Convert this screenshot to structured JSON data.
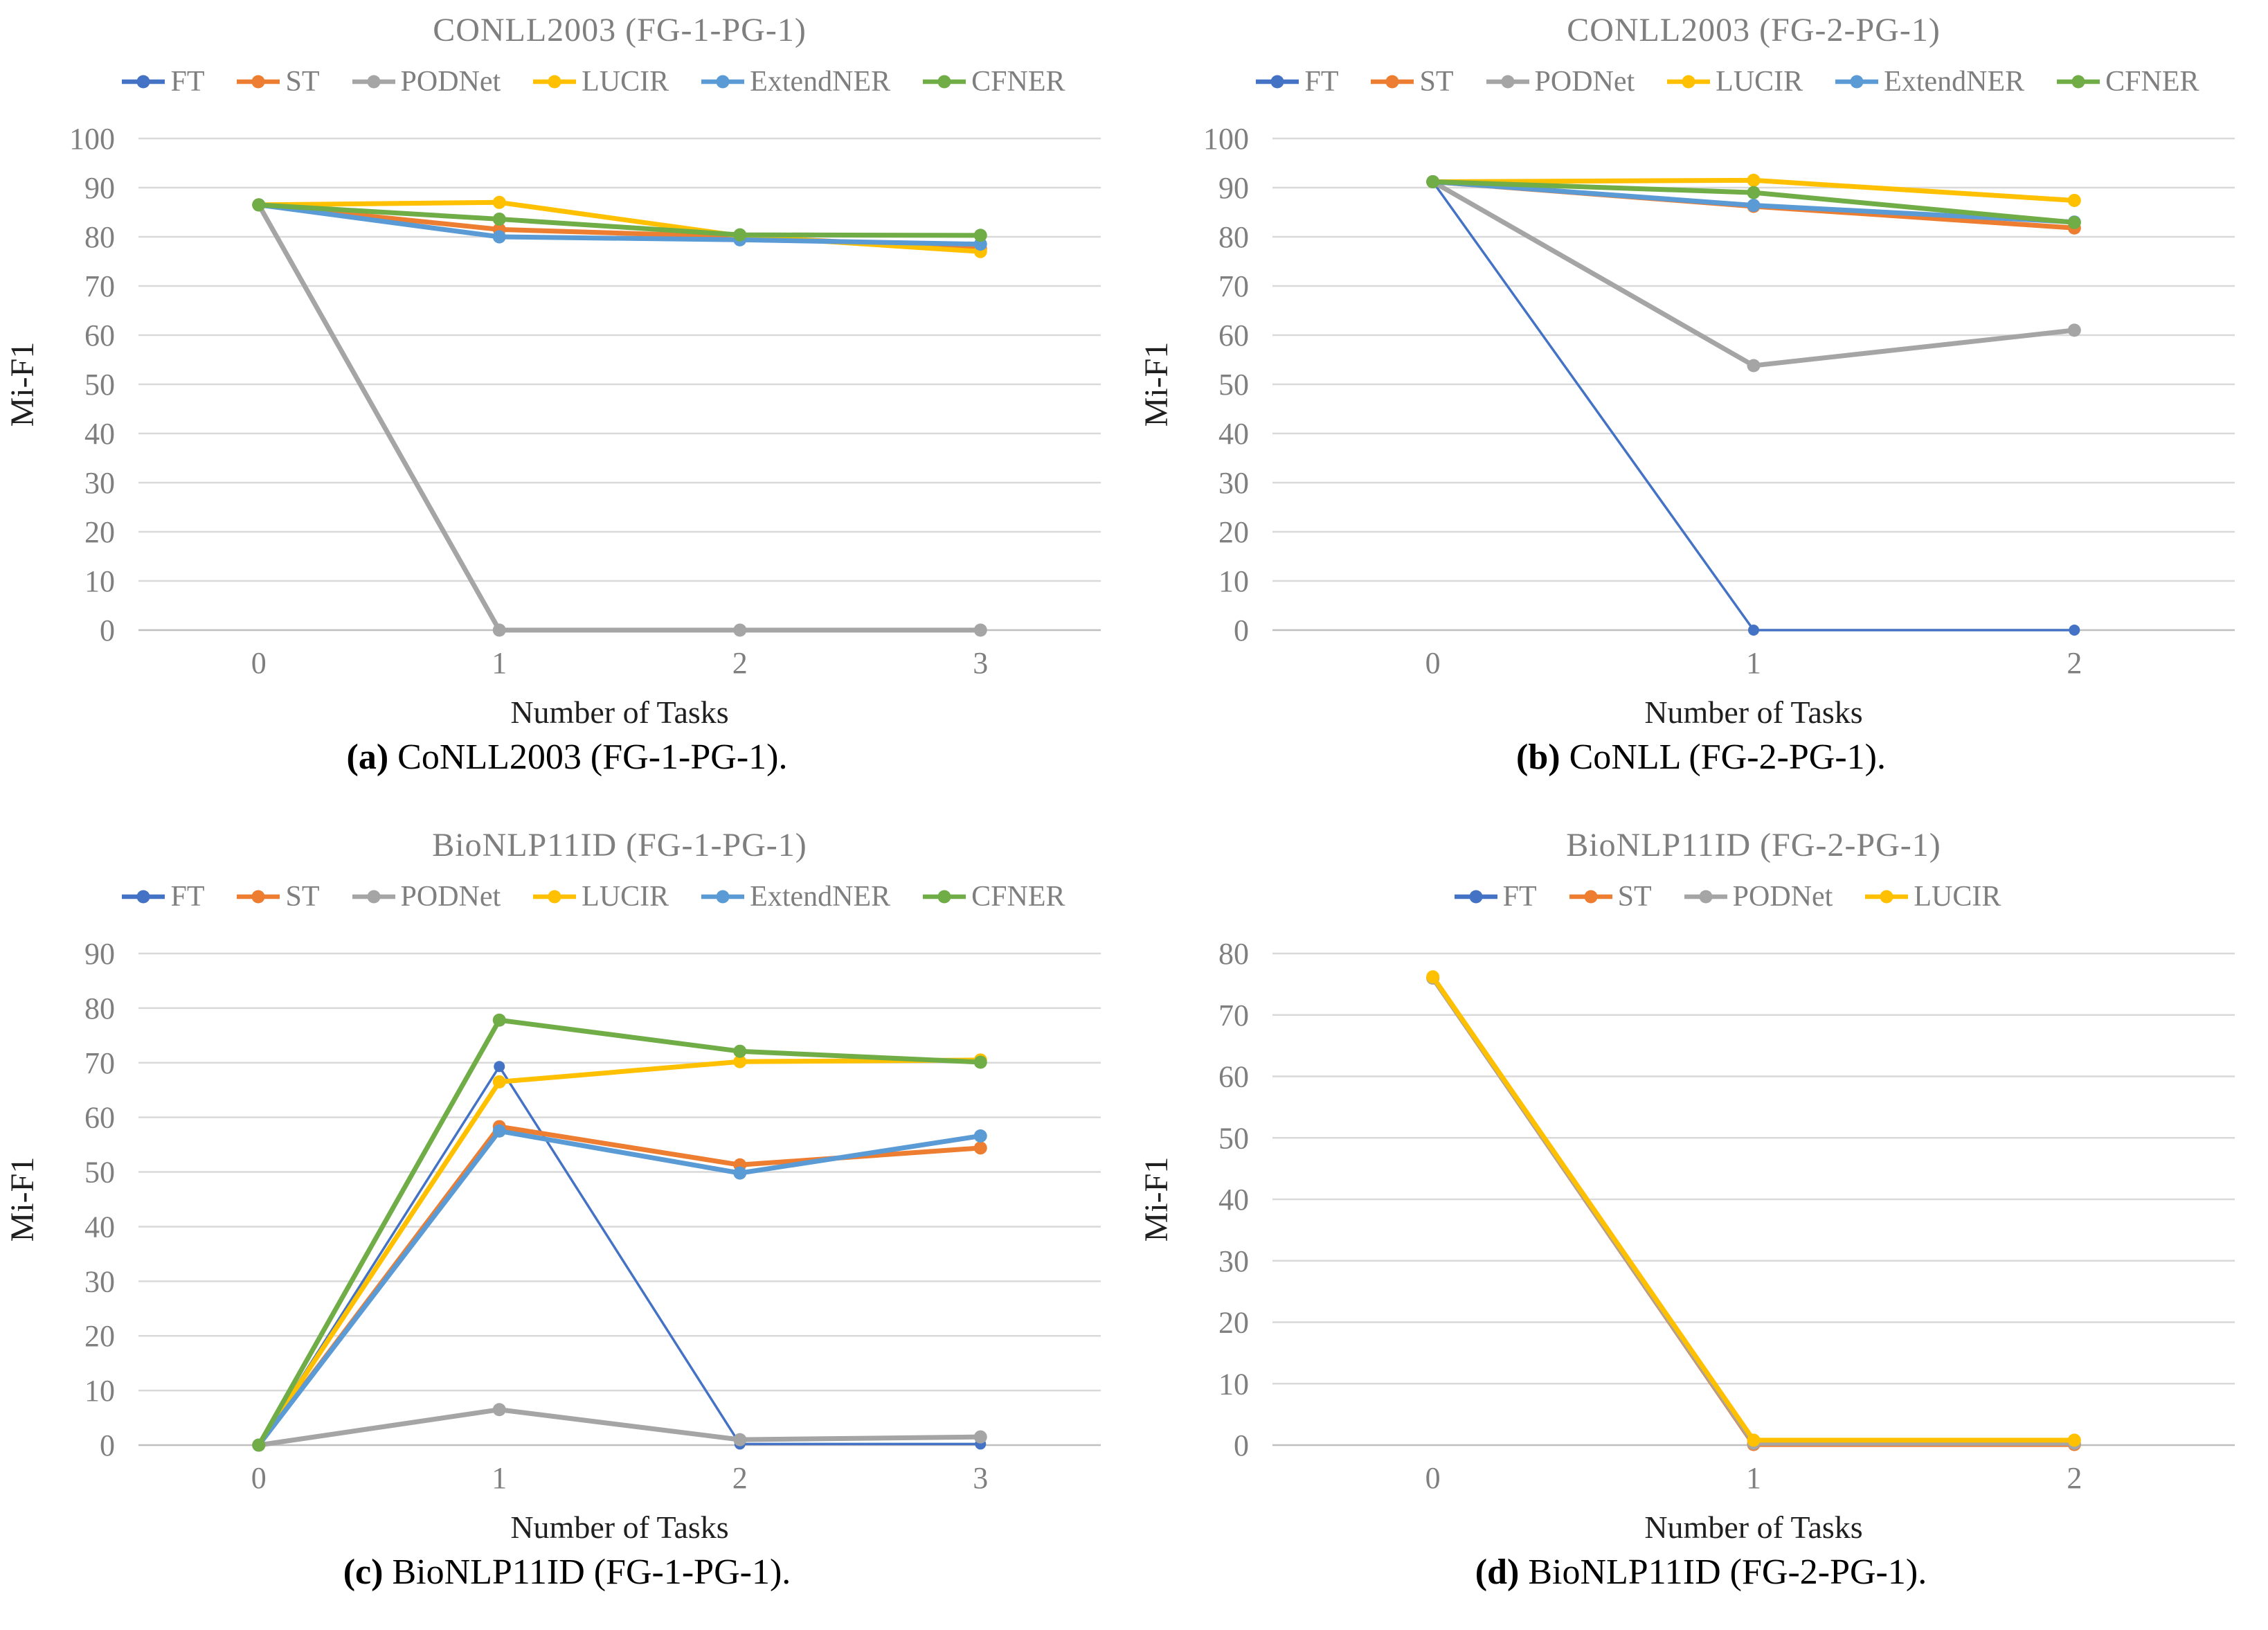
{
  "figure": {
    "background": "#ffffff",
    "ylabel_color": "#1f1f1f",
    "title_color": "#7F7F7F",
    "tick_color": "#7F7F7F",
    "gridline_color": "#D9D9D9",
    "axis_line_color": "#BFBFBF"
  },
  "colors": {
    "FT": "#4472C4",
    "ST": "#ED7D31",
    "PODNet": "#A5A5A5",
    "LUCIR": "#FFC000",
    "ExtendNER": "#5B9BD5",
    "CFNER": "#70AD47"
  },
  "chart_data": [
    {
      "id": "a",
      "type": "line",
      "title": "CONLL2003 (FG-1-PG-1)",
      "xlabel": "Number of Tasks",
      "ylabel": "Mi-F1",
      "caption_label": "(a)",
      "caption_text": " CoNLL2003 (FG-1-PG-1).",
      "categories": [
        0,
        1,
        2,
        3
      ],
      "ylim": [
        0,
        100
      ],
      "ystep": 10,
      "grid": true,
      "legend_position": "top",
      "marker": "circle",
      "series": [
        {
          "name": "FT",
          "values": [
            86.5,
            79.8,
            79.2,
            78.3
          ]
        },
        {
          "name": "ST",
          "values": [
            86.5,
            81.5,
            80.0,
            77.6
          ]
        },
        {
          "name": "PODNet",
          "values": [
            86.5,
            0.0,
            0.0,
            0.0
          ]
        },
        {
          "name": "LUCIR",
          "values": [
            86.5,
            87.0,
            80.2,
            77.0
          ]
        },
        {
          "name": "ExtendNER",
          "values": [
            86.5,
            80.0,
            79.4,
            78.5
          ]
        },
        {
          "name": "CFNER",
          "values": [
            86.5,
            83.6,
            80.4,
            80.3
          ]
        }
      ]
    },
    {
      "id": "b",
      "type": "line",
      "title": "CONLL2003 (FG-2-PG-1)",
      "xlabel": "Number of Tasks",
      "ylabel": "Mi-F1",
      "caption_label": "(b)",
      "caption_text": " CoNLL (FG-2-PG-1).",
      "categories": [
        0,
        1,
        2
      ],
      "ylim": [
        0,
        100
      ],
      "ystep": 10,
      "grid": true,
      "legend_position": "top",
      "marker": "circle",
      "series": [
        {
          "name": "FT",
          "values": [
            91.2,
            0.0,
            0.0
          ]
        },
        {
          "name": "ST",
          "values": [
            91.2,
            86.2,
            81.8
          ]
        },
        {
          "name": "PODNet",
          "values": [
            91.2,
            53.8,
            61.0
          ]
        },
        {
          "name": "LUCIR",
          "values": [
            91.2,
            91.5,
            87.4
          ]
        },
        {
          "name": "ExtendNER",
          "values": [
            91.2,
            86.4,
            83.0
          ]
        },
        {
          "name": "CFNER",
          "values": [
            91.2,
            89.0,
            82.9
          ]
        }
      ]
    },
    {
      "id": "c",
      "type": "line",
      "title": "BioNLP11ID (FG-1-PG-1)",
      "xlabel": "Number of Tasks",
      "ylabel": "Mi-F1",
      "caption_label": "(c)",
      "caption_text": " BioNLP11ID (FG-1-PG-1).",
      "categories": [
        0,
        1,
        2,
        3
      ],
      "ylim": [
        0,
        90
      ],
      "ystep": 10,
      "grid": true,
      "legend_position": "top",
      "marker": "circle",
      "series": [
        {
          "name": "FT",
          "values": [
            0.0,
            69.3,
            0.2,
            0.2
          ]
        },
        {
          "name": "ST",
          "values": [
            0.0,
            58.3,
            51.3,
            54.4
          ]
        },
        {
          "name": "PODNet",
          "values": [
            0.0,
            6.5,
            1.0,
            1.5
          ]
        },
        {
          "name": "LUCIR",
          "values": [
            0.0,
            66.5,
            70.2,
            70.5
          ]
        },
        {
          "name": "ExtendNER",
          "values": [
            0.0,
            57.5,
            49.8,
            56.6
          ]
        },
        {
          "name": "CFNER",
          "values": [
            0.0,
            77.8,
            72.1,
            70.1
          ]
        }
      ]
    },
    {
      "id": "d",
      "type": "line",
      "title": "BioNLP11ID (FG-2-PG-1)",
      "xlabel": "Number of Tasks",
      "ylabel": "Mi-F1",
      "caption_label": "(d)",
      "caption_text": " BioNLP11ID (FG-2-PG-1).",
      "categories": [
        0,
        1,
        2
      ],
      "ylim": [
        0,
        80
      ],
      "ystep": 10,
      "grid": true,
      "legend_position": "top",
      "marker": "circle",
      "series": [
        {
          "name": "FT",
          "values": [
            76.0,
            0.1,
            0.1
          ]
        },
        {
          "name": "ST",
          "values": [
            76.0,
            0.1,
            0.1
          ]
        },
        {
          "name": "PODNet",
          "values": [
            76.0,
            0.3,
            0.3
          ]
        },
        {
          "name": "LUCIR",
          "values": [
            76.2,
            0.8,
            0.8
          ]
        }
      ]
    }
  ]
}
